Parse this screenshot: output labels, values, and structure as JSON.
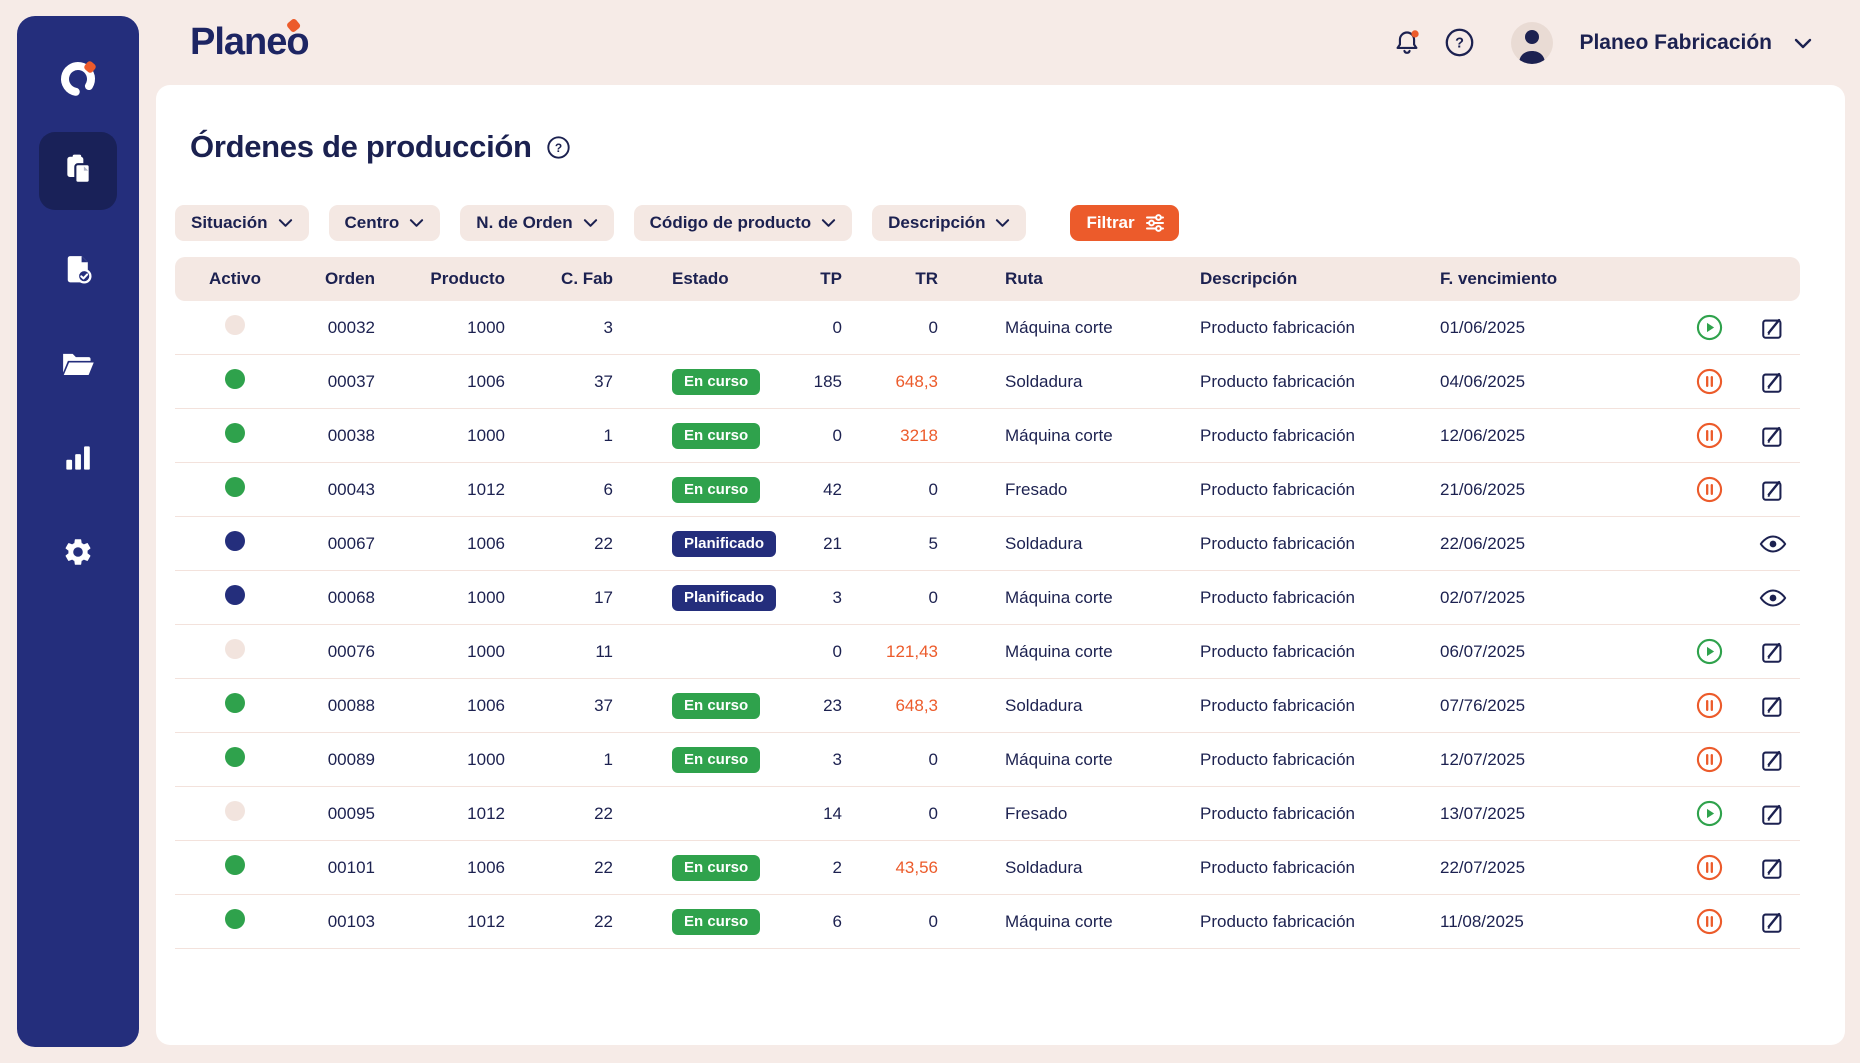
{
  "app": {
    "brand": "Planeo"
  },
  "topbar": {
    "user_name": "Planeo Fabricación",
    "has_notification": true
  },
  "page": {
    "title": "Órdenes de producción"
  },
  "filters": {
    "chips": [
      {
        "label": "Situación"
      },
      {
        "label": "Centro"
      },
      {
        "label": "N. de Orden"
      },
      {
        "label": "Código de producto"
      },
      {
        "label": "Descripción"
      }
    ],
    "filter_button_label": "Filtrar"
  },
  "sidebar": {
    "items": [
      {
        "name": "home-logo",
        "icon": "planeo-ring-icon"
      },
      {
        "name": "production-orders",
        "icon": "clipboard-copy-icon",
        "active": true
      },
      {
        "name": "validated-documents",
        "icon": "document-check-icon"
      },
      {
        "name": "projects",
        "icon": "folder-open-icon"
      },
      {
        "name": "reports",
        "icon": "bar-chart-icon"
      },
      {
        "name": "settings",
        "icon": "gear-icon"
      }
    ]
  },
  "table": {
    "columns": [
      {
        "key": "activo",
        "label": "Activo",
        "align": "center"
      },
      {
        "key": "orden",
        "label": "Orden",
        "align": "right"
      },
      {
        "key": "producto",
        "label": "Producto",
        "align": "right"
      },
      {
        "key": "cfab",
        "label": "C. Fab",
        "align": "right"
      },
      {
        "key": "estado",
        "label": "Estado",
        "align": "left"
      },
      {
        "key": "tp",
        "label": "TP",
        "align": "right"
      },
      {
        "key": "tr",
        "label": "TR",
        "align": "right"
      },
      {
        "key": "ruta",
        "label": "Ruta",
        "align": "left"
      },
      {
        "key": "descripcion",
        "label": "Descripción",
        "align": "left"
      },
      {
        "key": "vencimiento",
        "label": "F. vencimiento",
        "align": "left"
      },
      {
        "key": "acciones",
        "label": "",
        "align": "right"
      }
    ],
    "status_styles": {
      "En curso": "green",
      "Planificado": "navy"
    },
    "rows": [
      {
        "active": "off",
        "orden": "00032",
        "producto": "1000",
        "cfab": "3",
        "estado": "",
        "tp": "0",
        "tr": "0",
        "tr_alert": false,
        "ruta": "Máquina corte",
        "descripcion": "Producto fabricación",
        "vencimiento": "01/06/2025",
        "actions": "play"
      },
      {
        "active": "on",
        "orden": "00037",
        "producto": "1006",
        "cfab": "37",
        "estado": "En curso",
        "tp": "185",
        "tr": "648,3",
        "tr_alert": true,
        "ruta": "Soldadura",
        "descripcion": "Producto fabricación",
        "vencimiento": "04/06/2025",
        "actions": "pause"
      },
      {
        "active": "on",
        "orden": "00038",
        "producto": "1000",
        "cfab": "1",
        "estado": "En curso",
        "tp": "0",
        "tr": "3218",
        "tr_alert": true,
        "ruta": "Máquina corte",
        "descripcion": "Producto fabricación",
        "vencimiento": "12/06/2025",
        "actions": "pause"
      },
      {
        "active": "on",
        "orden": "00043",
        "producto": "1012",
        "cfab": "6",
        "estado": "En curso",
        "tp": "42",
        "tr": "0",
        "tr_alert": false,
        "ruta": "Fresado",
        "descripcion": "Producto fabricación",
        "vencimiento": "21/06/2025",
        "actions": "pause"
      },
      {
        "active": "planned",
        "orden": "00067",
        "producto": "1006",
        "cfab": "22",
        "estado": "Planificado",
        "tp": "21",
        "tr": "5",
        "tr_alert": false,
        "ruta": "Soldadura",
        "descripcion": "Producto fabricación",
        "vencimiento": "22/06/2025",
        "actions": "view"
      },
      {
        "active": "planned",
        "orden": "00068",
        "producto": "1000",
        "cfab": "17",
        "estado": "Planificado",
        "tp": "3",
        "tr": "0",
        "tr_alert": false,
        "ruta": "Máquina corte",
        "descripcion": "Producto fabricación",
        "vencimiento": "02/07/2025",
        "actions": "view"
      },
      {
        "active": "off",
        "orden": "00076",
        "producto": "1000",
        "cfab": "11",
        "estado": "",
        "tp": "0",
        "tr": "121,43",
        "tr_alert": true,
        "ruta": "Máquina corte",
        "descripcion": "Producto fabricación",
        "vencimiento": "06/07/2025",
        "actions": "play"
      },
      {
        "active": "on",
        "orden": "00088",
        "producto": "1006",
        "cfab": "37",
        "estado": "En curso",
        "tp": "23",
        "tr": "648,3",
        "tr_alert": true,
        "ruta": "Soldadura",
        "descripcion": "Producto fabricación",
        "vencimiento": "07/76/2025",
        "actions": "pause"
      },
      {
        "active": "on",
        "orden": "00089",
        "producto": "1000",
        "cfab": "1",
        "estado": "En curso",
        "tp": "3",
        "tr": "0",
        "tr_alert": false,
        "ruta": "Máquina corte",
        "descripcion": "Producto fabricación",
        "vencimiento": "12/07/2025",
        "actions": "pause"
      },
      {
        "active": "off",
        "orden": "00095",
        "producto": "1012",
        "cfab": "22",
        "estado": "",
        "tp": "14",
        "tr": "0",
        "tr_alert": false,
        "ruta": "Fresado",
        "descripcion": "Producto fabricación",
        "vencimiento": "13/07/2025",
        "actions": "play"
      },
      {
        "active": "on",
        "orden": "00101",
        "producto": "1006",
        "cfab": "22",
        "estado": "En curso",
        "tp": "2",
        "tr": "43,56",
        "tr_alert": true,
        "ruta": "Soldadura",
        "descripcion": "Producto fabricación",
        "vencimiento": "22/07/2025",
        "actions": "pause"
      },
      {
        "active": "on",
        "orden": "00103",
        "producto": "1012",
        "cfab": "22",
        "estado": "En curso",
        "tp": "6",
        "tr": "0",
        "tr_alert": false,
        "ruta": "Máquina corte",
        "descripcion": "Producto fabricación",
        "vencimiento": "11/08/2025",
        "actions": "pause"
      }
    ]
  },
  "colors": {
    "navy": "#1c2150",
    "indigo": "#242e7c",
    "indigo_dark": "#192158",
    "orange": "#ec5b2b",
    "green": "#2fa24c",
    "page_bg": "#f6ebe7",
    "band": "#f4e8e3",
    "divider": "#f3e2dc",
    "dot_inactive": "#f2e4de",
    "card": "#ffffff"
  }
}
